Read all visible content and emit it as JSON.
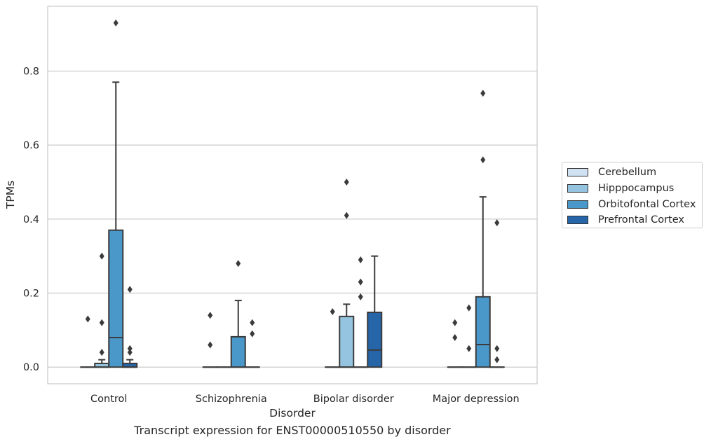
{
  "caption": "Transcript expression for ENST00000510550 by disorder",
  "chart_data": {
    "type": "box",
    "title": "",
    "xlabel": "Disorder",
    "ylabel": "TPMs",
    "ylim": [
      -0.045,
      0.975
    ],
    "yticks": [
      0.0,
      0.2,
      0.4,
      0.6,
      0.8
    ],
    "ytick_labels": [
      "0.0",
      "0.2",
      "0.4",
      "0.6",
      "0.8"
    ],
    "grid": "horizontal",
    "legend_position": "right",
    "categories": [
      "Control",
      "Schizophrenia",
      "Bipolar disorder",
      "Major depression"
    ],
    "series": [
      {
        "name": "Cerebellum",
        "color": "#d0e1f2"
      },
      {
        "name": "Hipppocampus",
        "color": "#94c4df"
      },
      {
        "name": "Orbitofontal Cortex",
        "color": "#4a98c9"
      },
      {
        "name": "Prefrontal Cortex",
        "color": "#2565a8"
      }
    ],
    "boxes": [
      [
        {
          "q1": 0,
          "median": 0,
          "q3": 0,
          "whislo": 0,
          "whishi": 0,
          "fliers": [
            0.13
          ]
        },
        {
          "q1": 0,
          "median": 0,
          "q3": 0.01,
          "whislo": 0,
          "whishi": 0.02,
          "fliers": [
            0.3,
            0.12,
            0.04
          ]
        },
        {
          "q1": 0,
          "median": 0.08,
          "q3": 0.37,
          "whislo": 0,
          "whishi": 0.77,
          "fliers": [
            0.93
          ]
        },
        {
          "q1": 0,
          "median": 0,
          "q3": 0.01,
          "whislo": 0,
          "whishi": 0.02,
          "fliers": [
            0.21,
            0.05,
            0.04
          ]
        }
      ],
      [
        {
          "q1": 0,
          "median": 0,
          "q3": 0,
          "whislo": 0,
          "whishi": 0,
          "fliers": [
            0.14,
            0.06
          ]
        },
        {
          "q1": 0,
          "median": 0,
          "q3": 0,
          "whislo": 0,
          "whishi": 0,
          "fliers": []
        },
        {
          "q1": 0,
          "median": 0,
          "q3": 0.082,
          "whislo": 0,
          "whishi": 0.18,
          "fliers": [
            0.28
          ]
        },
        {
          "q1": 0,
          "median": 0,
          "q3": 0,
          "whislo": 0,
          "whishi": 0,
          "fliers": [
            0.12,
            0.09
          ]
        }
      ],
      [
        {
          "q1": 0,
          "median": 0,
          "q3": 0,
          "whislo": 0,
          "whishi": 0,
          "fliers": [
            0.15
          ]
        },
        {
          "q1": 0,
          "median": 0,
          "q3": 0.137,
          "whislo": 0,
          "whishi": 0.17,
          "fliers": [
            0.5,
            0.41
          ]
        },
        {
          "q1": 0,
          "median": 0,
          "q3": 0,
          "whislo": 0,
          "whishi": 0,
          "fliers": [
            0.29,
            0.23,
            0.19
          ]
        },
        {
          "q1": 0,
          "median": 0.046,
          "q3": 0.148,
          "whislo": 0,
          "whishi": 0.3,
          "fliers": []
        }
      ],
      [
        {
          "q1": 0,
          "median": 0,
          "q3": 0,
          "whislo": 0,
          "whishi": 0,
          "fliers": [
            0.12,
            0.08
          ]
        },
        {
          "q1": 0,
          "median": 0,
          "q3": 0,
          "whislo": 0,
          "whishi": 0,
          "fliers": [
            0.16,
            0.05
          ]
        },
        {
          "q1": 0,
          "median": 0.061,
          "q3": 0.19,
          "whislo": 0,
          "whishi": 0.46,
          "fliers": [
            0.74,
            0.56
          ]
        },
        {
          "q1": 0,
          "median": 0,
          "q3": 0,
          "whislo": 0,
          "whishi": 0,
          "fliers": [
            0.39,
            0.05,
            0.02
          ]
        }
      ]
    ]
  }
}
